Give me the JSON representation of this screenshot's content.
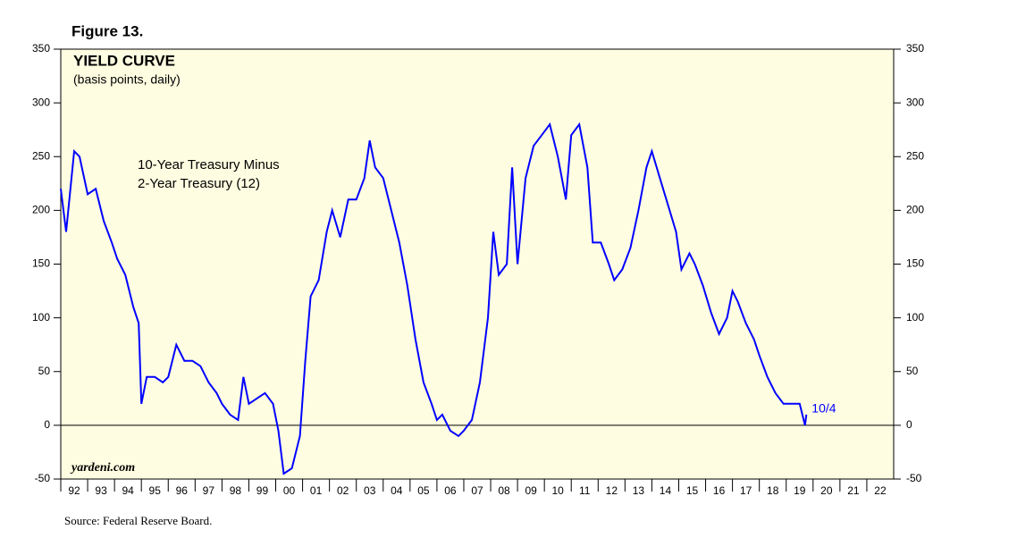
{
  "chart_data": {
    "type": "line",
    "figure_label": "Figure 13.",
    "title": "YIELD CURVE",
    "subtitle": "(basis points, daily)",
    "annotation": "10-Year Treasury Minus",
    "annotation2": "2-Year Treasury (12)",
    "end_label": "10/4",
    "watermark": "yardeni.com",
    "source": "Source: Federal Reserve Board.",
    "xlim": [
      1992,
      2023
    ],
    "xticks": [
      {
        "value": 1992,
        "label": "92"
      },
      {
        "value": 1993,
        "label": "93"
      },
      {
        "value": 1994,
        "label": "94"
      },
      {
        "value": 1995,
        "label": "95"
      },
      {
        "value": 1996,
        "label": "96"
      },
      {
        "value": 1997,
        "label": "97"
      },
      {
        "value": 1998,
        "label": "98"
      },
      {
        "value": 1999,
        "label": "99"
      },
      {
        "value": 2000,
        "label": "00"
      },
      {
        "value": 2001,
        "label": "01"
      },
      {
        "value": 2002,
        "label": "02"
      },
      {
        "value": 2003,
        "label": "03"
      },
      {
        "value": 2004,
        "label": "04"
      },
      {
        "value": 2005,
        "label": "05"
      },
      {
        "value": 2006,
        "label": "06"
      },
      {
        "value": 2007,
        "label": "07"
      },
      {
        "value": 2008,
        "label": "08"
      },
      {
        "value": 2009,
        "label": "09"
      },
      {
        "value": 2010,
        "label": "10"
      },
      {
        "value": 2011,
        "label": "11"
      },
      {
        "value": 2012,
        "label": "12"
      },
      {
        "value": 2013,
        "label": "13"
      },
      {
        "value": 2014,
        "label": "14"
      },
      {
        "value": 2015,
        "label": "15"
      },
      {
        "value": 2016,
        "label": "16"
      },
      {
        "value": 2017,
        "label": "17"
      },
      {
        "value": 2018,
        "label": "18"
      },
      {
        "value": 2019,
        "label": "19"
      },
      {
        "value": 2020,
        "label": "20"
      },
      {
        "value": 2021,
        "label": "21"
      },
      {
        "value": 2022,
        "label": "22"
      }
    ],
    "ylim": [
      -50,
      350
    ],
    "yticks": [
      -50,
      0,
      50,
      100,
      150,
      200,
      250,
      300,
      350
    ],
    "background": "#fffde1",
    "series": [
      {
        "name": "10-Year Treasury Minus 2-Year Treasury",
        "color": "#0000ff",
        "x": [
          1992.0,
          1992.2,
          1992.5,
          1992.7,
          1993.0,
          1993.3,
          1993.6,
          1993.9,
          1994.1,
          1994.4,
          1994.7,
          1994.9,
          1995.0,
          1995.2,
          1995.5,
          1995.8,
          1996.0,
          1996.3,
          1996.6,
          1996.9,
          1997.2,
          1997.5,
          1997.8,
          1998.0,
          1998.3,
          1998.6,
          1998.8,
          1999.0,
          1999.3,
          1999.6,
          1999.9,
          2000.1,
          2000.3,
          2000.6,
          2000.9,
          2001.1,
          2001.3,
          2001.6,
          2001.9,
          2002.1,
          2002.4,
          2002.7,
          2003.0,
          2003.3,
          2003.5,
          2003.7,
          2004.0,
          2004.3,
          2004.6,
          2004.9,
          2005.2,
          2005.5,
          2005.8,
          2006.0,
          2006.2,
          2006.5,
          2006.8,
          2007.0,
          2007.3,
          2007.6,
          2007.9,
          2008.1,
          2008.3,
          2008.6,
          2008.8,
          2009.0,
          2009.3,
          2009.6,
          2009.9,
          2010.2,
          2010.5,
          2010.8,
          2011.0,
          2011.3,
          2011.6,
          2011.8,
          2012.1,
          2012.4,
          2012.6,
          2012.9,
          2013.2,
          2013.5,
          2013.8,
          2014.0,
          2014.3,
          2014.6,
          2014.9,
          2015.1,
          2015.4,
          2015.6,
          2015.9,
          2016.2,
          2016.5,
          2016.8,
          2017.0,
          2017.2,
          2017.5,
          2017.8,
          2018.0,
          2018.3,
          2018.6,
          2018.9,
          2019.2,
          2019.5,
          2019.7,
          2019.75
        ],
        "values": [
          220,
          180,
          255,
          250,
          215,
          220,
          190,
          170,
          155,
          140,
          110,
          95,
          20,
          45,
          45,
          40,
          45,
          75,
          60,
          60,
          55,
          40,
          30,
          20,
          10,
          5,
          45,
          20,
          25,
          30,
          20,
          -5,
          -45,
          -40,
          -10,
          60,
          120,
          135,
          180,
          200,
          175,
          210,
          210,
          230,
          265,
          240,
          230,
          200,
          170,
          130,
          80,
          40,
          20,
          5,
          10,
          -5,
          -10,
          -5,
          5,
          40,
          100,
          180,
          140,
          150,
          240,
          150,
          230,
          260,
          270,
          280,
          250,
          210,
          270,
          280,
          240,
          170,
          170,
          150,
          135,
          145,
          165,
          200,
          240,
          255,
          230,
          205,
          180,
          145,
          160,
          150,
          130,
          105,
          85,
          100,
          125,
          115,
          95,
          80,
          65,
          45,
          30,
          20,
          20,
          20,
          0,
          10
        ]
      }
    ]
  }
}
